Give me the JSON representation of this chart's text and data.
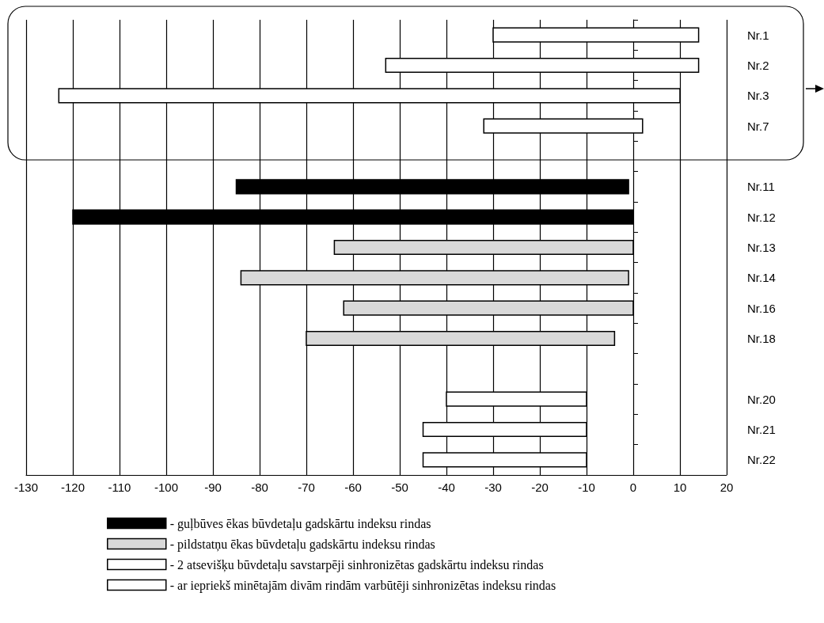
{
  "chart_data": {
    "type": "bar",
    "orientation": "horizontal",
    "categories": [
      "Nr.1",
      "Nr.2",
      "Nr.3",
      "Nr.7",
      null,
      "Nr.11",
      "Nr.12",
      "Nr.13",
      "Nr.14",
      "Nr.16",
      "Nr.18",
      null,
      "Nr.20",
      "Nr.21",
      "Nr.22"
    ],
    "series": [
      {
        "name": "- guļbūves ēkas būvdetaļu gadskārtu indeksu rindas",
        "color": "#000000",
        "values": [
          null,
          null,
          null,
          null,
          null,
          84,
          120,
          null,
          null,
          null,
          null,
          null,
          null,
          null,
          null
        ],
        "base": [
          null,
          null,
          null,
          null,
          null,
          -85,
          -120,
          null,
          null,
          null,
          null,
          null,
          null,
          null,
          null
        ]
      },
      {
        "name": "- pildstatņu ēkas būvdetaļu gadskārtu indeksu rindas",
        "color": "#d9d9d9",
        "values": [
          null,
          null,
          null,
          null,
          null,
          null,
          null,
          64,
          83,
          62,
          66,
          null,
          null,
          null,
          null
        ],
        "base": [
          null,
          null,
          null,
          null,
          null,
          null,
          null,
          -64,
          -84,
          -62,
          -70,
          null,
          null,
          null,
          null
        ]
      },
      {
        "name": "- 2 atsevišķu būvdetaļu savstarpēji sinhronizētas gadskārtu indeksu rindas",
        "color": "#ffffff",
        "values": [
          44,
          67,
          133,
          34,
          null,
          null,
          null,
          null,
          null,
          null,
          null,
          null,
          null,
          null,
          null
        ],
        "base": [
          -30,
          -53,
          -123,
          -32,
          null,
          null,
          null,
          null,
          null,
          null,
          null,
          null,
          null,
          null,
          null
        ]
      },
      {
        "name": "- ar iepriekš minētajām divām rindām varbūtēji sinhronizētas indeksu rindas",
        "color": "#fefefe",
        "values": [
          null,
          null,
          null,
          null,
          null,
          null,
          null,
          null,
          null,
          null,
          null,
          null,
          30,
          35,
          35
        ],
        "base": [
          null,
          null,
          null,
          null,
          null,
          null,
          null,
          null,
          null,
          null,
          null,
          null,
          -40,
          -45,
          -45
        ]
      }
    ],
    "xlim": [
      -130,
      20
    ],
    "xticks": [
      -130,
      -120,
      -110,
      -100,
      -90,
      -80,
      -70,
      -60,
      -50,
      -40,
      -30,
      -20,
      -10,
      0,
      10,
      20
    ],
    "grid": "x",
    "legend": "bottom"
  }
}
